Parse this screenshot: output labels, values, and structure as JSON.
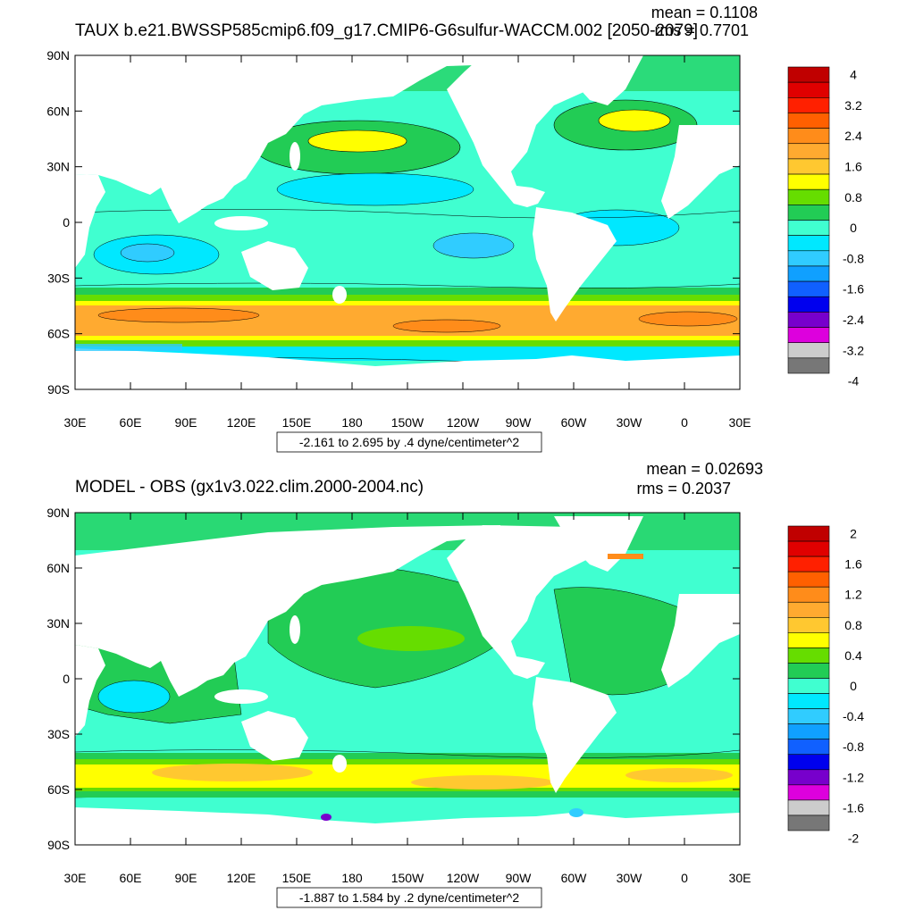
{
  "panels": [
    {
      "title": "TAUX b.e21.BWSSP585cmip6.f09_g17.CMIP6-G6sulfur-WACCM.002 [2050-2079]",
      "mean": "mean = 0.1108",
      "rms": "rms = 0.7701",
      "y_ticks": [
        "90N",
        "60N",
        "30N",
        "0",
        "30S",
        "60S",
        "90S"
      ],
      "x_ticks": [
        "30E",
        "60E",
        "90E",
        "120E",
        "150E",
        "180",
        "150W",
        "120W",
        "90W",
        "60W",
        "30W",
        "0",
        "30E"
      ],
      "range_label": "-2.161 to 2.695 by .4 dyne/centimeter^2",
      "colorbar_labels": [
        "4",
        "3.2",
        "2.4",
        "1.6",
        "0.8",
        "0",
        "-0.8",
        "-1.6",
        "-2.4",
        "-3.2",
        "-4"
      ],
      "colorbar_colors": [
        "#c00000",
        "#e00000",
        "#ff2000",
        "#ff6000",
        "#ff8c1a",
        "#ffaa30",
        "#ffc830",
        "#ffff00",
        "#66dd00",
        "#22cc55",
        "#40ffd0",
        "#00e8ff",
        "#30ccff",
        "#10a0ff",
        "#1060ff",
        "#0000ee",
        "#7700cc",
        "#dd00dd",
        "#cccccc",
        "#777777"
      ]
    },
    {
      "title": "MODEL - OBS (gx1v3.022.clim.2000-2004.nc)",
      "mean": "mean = 0.02693",
      "rms": "rms = 0.2037",
      "y_ticks": [
        "90N",
        "60N",
        "30N",
        "0",
        "30S",
        "60S",
        "90S"
      ],
      "x_ticks": [
        "30E",
        "60E",
        "90E",
        "120E",
        "150E",
        "180",
        "150W",
        "120W",
        "90W",
        "60W",
        "30W",
        "0",
        "30E"
      ],
      "range_label": "-1.887 to 1.584 by .2 dyne/centimeter^2",
      "colorbar_labels": [
        "2",
        "1.6",
        "1.2",
        "0.8",
        "0.4",
        "0",
        "-0.4",
        "-0.8",
        "-1.2",
        "-1.6",
        "-2"
      ],
      "colorbar_colors": [
        "#c00000",
        "#e00000",
        "#ff2000",
        "#ff6000",
        "#ff8c1a",
        "#ffaa30",
        "#ffc830",
        "#ffff00",
        "#66dd00",
        "#22cc55",
        "#40ffd0",
        "#00e8ff",
        "#30ccff",
        "#10a0ff",
        "#1060ff",
        "#0000ee",
        "#7700cc",
        "#dd00dd",
        "#cccccc",
        "#777777"
      ]
    }
  ],
  "colors": {
    "ocean_background": "#40ffd0",
    "land": "#ffffff",
    "positive_green": "#22cc55",
    "light_green": "#66dd00",
    "yellow": "#ffff00",
    "orange": "#ffaa30",
    "dark_orange": "#ff8c1a",
    "light_blue": "#00e8ff",
    "blue": "#30ccff"
  }
}
